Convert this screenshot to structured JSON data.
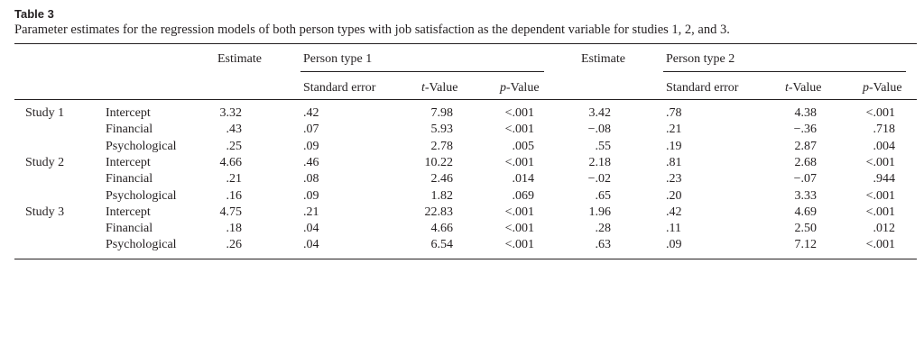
{
  "table_label": "Table 3",
  "caption": "Parameter estimates for the regression models of both person types with job satisfaction as the dependent variable for studies 1, 2, and 3.",
  "headers": {
    "estimate_1": "Estimate",
    "person_type_1": "Person type 1",
    "estimate_2": "Estimate",
    "person_type_2": "Person type 2",
    "std_error": "Standard error",
    "t_value_italic": "t",
    "t_value_rest": "-Value",
    "p_value_italic": "p",
    "p_value_rest": "-Value"
  },
  "rows": [
    {
      "study": "Study 1",
      "param": "Intercept",
      "est1": "3.32",
      "se1": ".42",
      "t1": "7.98",
      "p1": "<.001",
      "est2": "3.42",
      "se2": ".78",
      "t2": "4.38",
      "p2": "<.001"
    },
    {
      "study": "",
      "param": "Financial",
      "est1": ".43",
      "se1": ".07",
      "t1": "5.93",
      "p1": "<.001",
      "est2": "−.08",
      "se2": ".21",
      "t2": "−.36",
      "p2": ".718"
    },
    {
      "study": "",
      "param": "Psychological",
      "est1": ".25",
      "se1": ".09",
      "t1": "2.78",
      "p1": ".005",
      "est2": ".55",
      "se2": ".19",
      "t2": "2.87",
      "p2": ".004"
    },
    {
      "study": "Study 2",
      "param": "Intercept",
      "est1": "4.66",
      "se1": ".46",
      "t1": "10.22",
      "p1": "<.001",
      "est2": "2.18",
      "se2": ".81",
      "t2": "2.68",
      "p2": "<.001"
    },
    {
      "study": "",
      "param": "Financial",
      "est1": ".21",
      "se1": ".08",
      "t1": "2.46",
      "p1": ".014",
      "est2": "−.02",
      "se2": ".23",
      "t2": "−.07",
      "p2": ".944"
    },
    {
      "study": "",
      "param": "Psychological",
      "est1": ".16",
      "se1": ".09",
      "t1": "1.82",
      "p1": ".069",
      "est2": ".65",
      "se2": ".20",
      "t2": "3.33",
      "p2": "<.001"
    },
    {
      "study": "Study 3",
      "param": "Intercept",
      "est1": "4.75",
      "se1": ".21",
      "t1": "22.83",
      "p1": "<.001",
      "est2": "1.96",
      "se2": ".42",
      "t2": "4.69",
      "p2": "<.001"
    },
    {
      "study": "",
      "param": "Financial",
      "est1": ".18",
      "se1": ".04",
      "t1": "4.66",
      "p1": "<.001",
      "est2": ".28",
      "se2": ".11",
      "t2": "2.50",
      "p2": ".012"
    },
    {
      "study": "",
      "param": "Psychological",
      "est1": ".26",
      "se1": ".04",
      "t1": "6.54",
      "p1": "<.001",
      "est2": ".63",
      "se2": ".09",
      "t2": "7.12",
      "p2": "<.001"
    }
  ]
}
